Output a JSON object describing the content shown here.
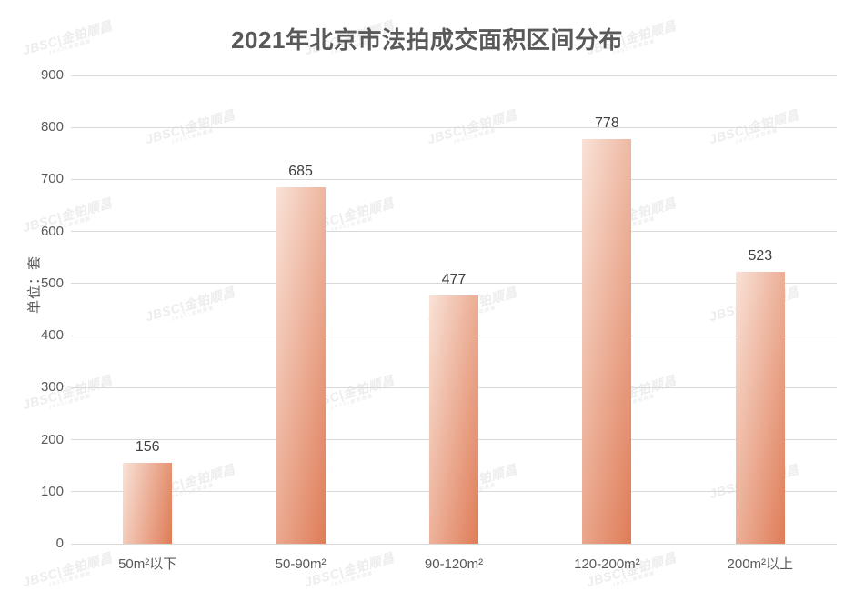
{
  "watermark": {
    "text": "JBSC|金铂顺昌"
  },
  "chart_data": {
    "type": "bar",
    "title": "2021年北京市法拍成交面积区间分布",
    "categories": [
      "50m²以下",
      "50-90m²",
      "90-120m²",
      "120-200m²",
      "200m²以上"
    ],
    "values": [
      156,
      685,
      477,
      778,
      523
    ],
    "xlabel": "",
    "ylabel": "单位：套",
    "ylim": [
      0,
      900
    ],
    "ytick_interval": 100,
    "yticks": [
      0,
      100,
      200,
      300,
      400,
      500,
      600,
      700,
      800,
      900
    ],
    "grid": true,
    "legend": "none",
    "value_labels_shown": true,
    "bar_gradient": [
      "#f9e2d7",
      "#df7c57"
    ],
    "colors": {
      "title_text": "#595959",
      "axis_text": "#595959",
      "value_label_text": "#404040",
      "gridline": "#d9d9d9",
      "watermark": "#ededed",
      "background": "#ffffff"
    }
  }
}
